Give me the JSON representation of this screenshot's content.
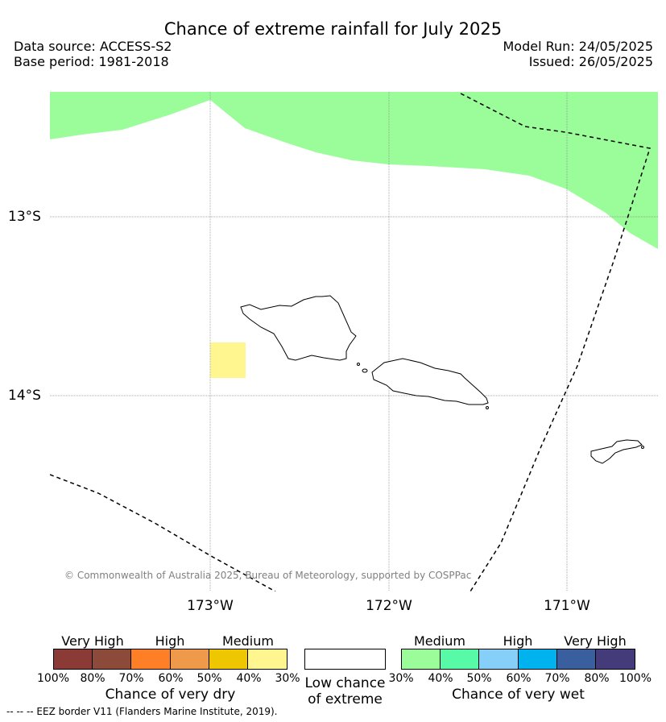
{
  "header": {
    "title": "Chance of extreme rainfall for July 2025",
    "data_source": "Data source: ACCESS-S2",
    "base_period": "Base period: 1981-2018",
    "model_run": "Model Run: 24/05/2025",
    "issued": "Issued: 26/05/2025"
  },
  "map": {
    "latitude_labels": [
      "13°S",
      "14°S"
    ],
    "longitude_labels": [
      "173°W",
      "172°W",
      "171°W"
    ],
    "copyright": "© Commonwealth of Australia 2025, Bureau of Meteorology, supported by COSPPac",
    "colors": {
      "wet_medium_region": "#9bfd9a",
      "dry_medium_region": "#fff68f",
      "land_outline": "#000000",
      "eez_border": "#000000"
    },
    "islands": [
      "Savai'i",
      "Upolu",
      "Tutuila"
    ]
  },
  "legend": {
    "dry": {
      "title": "Chance of very dry",
      "categories": [
        "Very High",
        "High",
        "Medium"
      ],
      "ticks": [
        "100%",
        "80%",
        "70%",
        "60%",
        "50%",
        "40%",
        "30%"
      ],
      "colors": [
        "#8b3a35",
        "#8b4a3a",
        "#ff7f27",
        "#ef9a4a",
        "#efc700",
        "#fff68f"
      ]
    },
    "neutral": {
      "title_line1": "Low chance",
      "title_line2": "of extreme",
      "color": "#ffffff"
    },
    "wet": {
      "title": "Chance of very wet",
      "categories": [
        "Medium",
        "High",
        "Very High"
      ],
      "ticks": [
        "30%",
        "40%",
        "50%",
        "60%",
        "70%",
        "80%",
        "100%"
      ],
      "colors": [
        "#9bfd9a",
        "#57fba7",
        "#86cff9",
        "#00b2ee",
        "#3a5f9e",
        "#433b7a"
      ]
    }
  },
  "footer": {
    "eez_note": "--  --  -- EEZ border V11 (Flanders Marine Institute, 2019)."
  }
}
